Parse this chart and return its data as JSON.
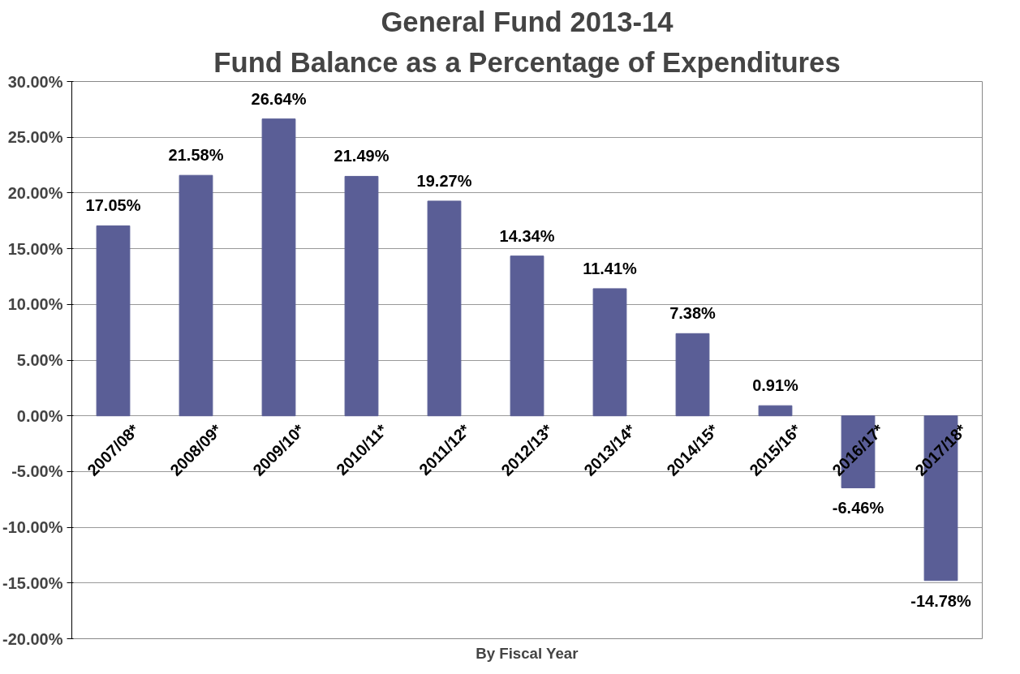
{
  "chart_data": {
    "type": "bar",
    "title": "General Fund 2013-14",
    "subtitle": "Fund Balance as a Percentage of Expenditures",
    "xlabel": "By Fiscal Year",
    "categories": [
      "2007/08*",
      "2008/09*",
      "2009/10*",
      "2010/11*",
      "2011/12*",
      "2012/13*",
      "2013/14*",
      "2014/15*",
      "2015/16*",
      "2016/17*",
      "2017/18*"
    ],
    "values": [
      17.05,
      21.58,
      26.64,
      21.49,
      19.27,
      14.34,
      11.41,
      7.38,
      0.91,
      -6.46,
      -14.78
    ],
    "value_labels": [
      "17.05%",
      "21.58%",
      "26.64%",
      "21.49%",
      "19.27%",
      "14.34%",
      "11.41%",
      "7.38%",
      "0.91%",
      "-6.46%",
      "-14.78%"
    ],
    "color": "#5a5e96",
    "ylim": [
      -20,
      30
    ],
    "yticks": [
      {
        "value": -20,
        "label": "-20.00%"
      },
      {
        "value": -15,
        "label": "-15.00%"
      },
      {
        "value": -10,
        "label": "-10.00%"
      },
      {
        "value": -5,
        "label": "-5.00%"
      },
      {
        "value": 0,
        "label": "0.00%"
      },
      {
        "value": 5,
        "label": "5.00%"
      },
      {
        "value": 10,
        "label": "10.00%"
      },
      {
        "value": 15,
        "label": "15.00%"
      },
      {
        "value": 20,
        "label": "20.00%"
      },
      {
        "value": 25,
        "label": "25.00%"
      },
      {
        "value": 30,
        "label": "30.00%"
      }
    ],
    "grid": "y"
  }
}
